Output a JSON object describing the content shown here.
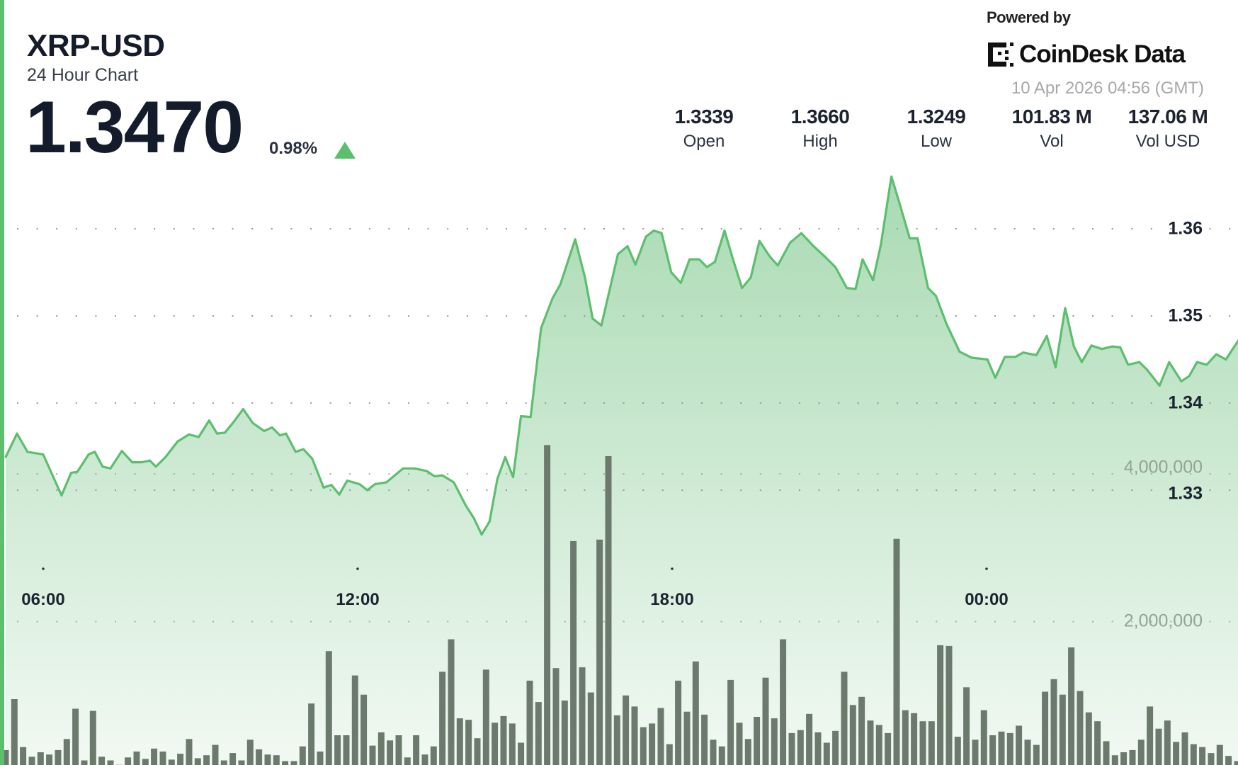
{
  "header": {
    "symbol": "XRP-USD",
    "subtitle": "24 Hour Chart",
    "price": "1.3470",
    "change_pct": "0.98%",
    "change_direction": "up",
    "change_icon": "triangle-up-icon"
  },
  "branding": {
    "powered_by": "Powered by",
    "logo_text": "CoinDesk Data",
    "timestamp": "10 Apr 2026 04:56 (GMT)"
  },
  "stats": [
    {
      "value": "1.3339",
      "label": "Open"
    },
    {
      "value": "1.3660",
      "label": "High"
    },
    {
      "value": "1.3249",
      "label": "Low"
    },
    {
      "value": "101.83 M",
      "label": "Vol"
    },
    {
      "value": "137.06 M",
      "label": "Vol USD"
    }
  ],
  "colors": {
    "line": "#5bbf6d",
    "area_top": "#a9dab3",
    "area_bottom": "#f2f9f3",
    "volume_bar": "#6c7a6d",
    "accent": "#5bbf6d"
  },
  "chart_data": {
    "type": "area",
    "grid": "dotted",
    "x_ticks": [
      "06:00",
      "12:00",
      "18:00",
      "00:00"
    ],
    "y_ticks": [
      "1.36",
      "1.35",
      "1.34",
      "1.33"
    ],
    "y_tick_values": [
      1.36,
      1.35,
      1.34,
      1.33
    ],
    "volume_ticks": [
      "4,000,000",
      "2,000,000"
    ],
    "volume_tick_values": [
      4000000,
      2000000
    ],
    "price_series": [
      [
        "05:17",
        1.3338
      ],
      [
        "05:30",
        1.3365
      ],
      [
        "05:42",
        1.3344
      ],
      [
        "06:00",
        1.3341
      ],
      [
        "06:21",
        1.3294
      ],
      [
        "06:32",
        1.332
      ],
      [
        "06:39",
        1.3321
      ],
      [
        "06:52",
        1.3341
      ],
      [
        "06:59",
        1.3344
      ],
      [
        "07:08",
        1.3327
      ],
      [
        "07:17",
        1.3325
      ],
      [
        "07:30",
        1.3345
      ],
      [
        "07:42",
        1.3332
      ],
      [
        "07:53",
        1.3332
      ],
      [
        "08:02",
        1.3334
      ],
      [
        "08:09",
        1.3327
      ],
      [
        "08:20",
        1.3338
      ],
      [
        "08:34",
        1.3356
      ],
      [
        "08:47",
        1.3364
      ],
      [
        "08:58",
        1.3361
      ],
      [
        "09:10",
        1.338
      ],
      [
        "09:19",
        1.3365
      ],
      [
        "09:28",
        1.3366
      ],
      [
        "09:37",
        1.3377
      ],
      [
        "09:49",
        1.3393
      ],
      [
        "10:00",
        1.3377
      ],
      [
        "10:13",
        1.3368
      ],
      [
        "10:22",
        1.3372
      ],
      [
        "10:31",
        1.3363
      ],
      [
        "10:38",
        1.3365
      ],
      [
        "10:49",
        1.3344
      ],
      [
        "10:58",
        1.3347
      ],
      [
        "11:08",
        1.3336
      ],
      [
        "11:21",
        1.3303
      ],
      [
        "11:30",
        1.3306
      ],
      [
        "11:39",
        1.3295
      ],
      [
        "11:48",
        1.3311
      ],
      [
        "12:02",
        1.3307
      ],
      [
        "12:11",
        1.33
      ],
      [
        "12:20",
        1.3307
      ],
      [
        "12:33",
        1.3309
      ],
      [
        "12:52",
        1.3325
      ],
      [
        "13:05",
        1.3325
      ],
      [
        "13:19",
        1.3322
      ],
      [
        "13:28",
        1.3316
      ],
      [
        "13:37",
        1.3317
      ],
      [
        "13:50",
        1.3309
      ],
      [
        "14:04",
        1.3282
      ],
      [
        "14:13",
        1.3268
      ],
      [
        "14:22",
        1.3249
      ],
      [
        "14:31",
        1.3264
      ],
      [
        "14:40",
        1.3313
      ],
      [
        "14:49",
        1.3338
      ],
      [
        "14:58",
        1.3315
      ],
      [
        "15:07",
        1.3385
      ],
      [
        "15:18",
        1.3384
      ],
      [
        "15:30",
        1.3486
      ],
      [
        "15:43",
        1.352
      ],
      [
        "15:52",
        1.3536
      ],
      [
        "16:09",
        1.3588
      ],
      [
        "16:20",
        1.3545
      ],
      [
        "16:29",
        1.3497
      ],
      [
        "16:39",
        1.3489
      ],
      [
        "16:58",
        1.3571
      ],
      [
        "17:09",
        1.358
      ],
      [
        "17:18",
        1.3559
      ],
      [
        "17:30",
        1.3591
      ],
      [
        "17:39",
        1.3598
      ],
      [
        "17:48",
        1.3595
      ],
      [
        "17:59",
        1.355
      ],
      [
        "18:10",
        1.3538
      ],
      [
        "18:20",
        1.3565
      ],
      [
        "18:31",
        1.3565
      ],
      [
        "18:40",
        1.3556
      ],
      [
        "18:49",
        1.3562
      ],
      [
        "19:00",
        1.3598
      ],
      [
        "19:10",
        1.3564
      ],
      [
        "19:20",
        1.3532
      ],
      [
        "19:30",
        1.3544
      ],
      [
        "19:40",
        1.3586
      ],
      [
        "19:52",
        1.3568
      ],
      [
        "20:01",
        1.3558
      ],
      [
        "20:15",
        1.3584
      ],
      [
        "20:28",
        1.3595
      ],
      [
        "20:42",
        1.358
      ],
      [
        "20:55",
        1.3568
      ],
      [
        "21:07",
        1.3556
      ],
      [
        "21:20",
        1.3532
      ],
      [
        "21:30",
        1.3531
      ],
      [
        "21:38",
        1.3565
      ],
      [
        "21:50",
        1.3541
      ],
      [
        "21:59",
        1.3582
      ],
      [
        "22:11",
        1.366
      ],
      [
        "22:21",
        1.3627
      ],
      [
        "22:32",
        1.3589
      ],
      [
        "22:41",
        1.3589
      ],
      [
        "22:53",
        1.3532
      ],
      [
        "23:02",
        1.3523
      ],
      [
        "23:14",
        1.3491
      ],
      [
        "23:29",
        1.3459
      ],
      [
        "23:43",
        1.3452
      ],
      [
        "00:01",
        1.345
      ],
      [
        "00:10",
        1.3429
      ],
      [
        "00:21",
        1.3453
      ],
      [
        "00:33",
        1.3453
      ],
      [
        "00:42",
        1.3458
      ],
      [
        "00:57",
        1.3455
      ],
      [
        "01:09",
        1.3477
      ],
      [
        "01:19",
        1.3441
      ],
      [
        "01:30",
        1.3509
      ],
      [
        "01:40",
        1.3465
      ],
      [
        "01:49",
        1.3447
      ],
      [
        "02:00",
        1.3466
      ],
      [
        "02:12",
        1.3462
      ],
      [
        "02:24",
        1.3465
      ],
      [
        "02:33",
        1.3464
      ],
      [
        "02:42",
        1.3444
      ],
      [
        "02:55",
        1.3447
      ],
      [
        "03:04",
        1.3438
      ],
      [
        "03:18",
        1.342
      ],
      [
        "03:29",
        1.3447
      ],
      [
        "03:43",
        1.3425
      ],
      [
        "03:52",
        1.3431
      ],
      [
        "04:01",
        1.3447
      ],
      [
        "04:12",
        1.3444
      ],
      [
        "04:23",
        1.3456
      ],
      [
        "04:34",
        1.345
      ],
      [
        "04:49",
        1.3473
      ]
    ],
    "volume_interval_minutes": 10,
    "volume_millions": [
      0.26,
      0.95,
      0.3,
      0.17,
      0.23,
      0.2,
      0.26,
      0.41,
      0.82,
      0.12,
      0.79,
      0.17,
      0.12,
      0.06,
      0.16,
      0.24,
      0.14,
      0.28,
      0.24,
      0.13,
      0.21,
      0.41,
      0.15,
      0.19,
      0.33,
      0.12,
      0.22,
      0.12,
      0.4,
      0.27,
      0.2,
      0.19,
      0.11,
      0.11,
      0.31,
      0.89,
      0.24,
      1.6,
      0.46,
      0.46,
      1.27,
      1.01,
      0.32,
      0.5,
      0.39,
      0.46,
      0.16,
      0.46,
      0.2,
      0.31,
      1.32,
      1.76,
      0.69,
      0.67,
      0.42,
      1.35,
      0.63,
      0.72,
      0.62,
      0.36,
      1.2,
      0.91,
      4.39,
      1.37,
      0.93,
      3.09,
      1.38,
      1.04,
      3.11,
      4.24,
      0.73,
      1.0,
      0.85,
      0.57,
      0.62,
      0.83,
      0.34,
      1.2,
      0.78,
      1.46,
      0.74,
      0.4,
      0.31,
      1.21,
      0.63,
      0.41,
      0.71,
      1.24,
      0.69,
      1.76,
      0.49,
      0.53,
      0.75,
      0.5,
      0.36,
      0.52,
      1.32,
      0.87,
      0.98,
      0.66,
      0.6,
      0.49,
      3.12,
      0.8,
      0.76,
      0.65,
      0.65,
      1.68,
      1.67,
      0.44,
      1.11,
      0.4,
      0.8,
      0.46,
      0.51,
      0.49,
      0.59,
      0.4,
      0.33,
      1.05,
      1.22,
      1.01,
      1.65,
      1.06,
      0.77,
      0.65,
      0.38,
      0.19,
      0.23,
      0.26,
      0.4,
      0.85,
      0.55,
      0.66,
      0.37,
      0.5,
      0.34,
      0.3,
      0.22,
      0.33,
      0.18,
      0.11,
      0.78
    ]
  }
}
